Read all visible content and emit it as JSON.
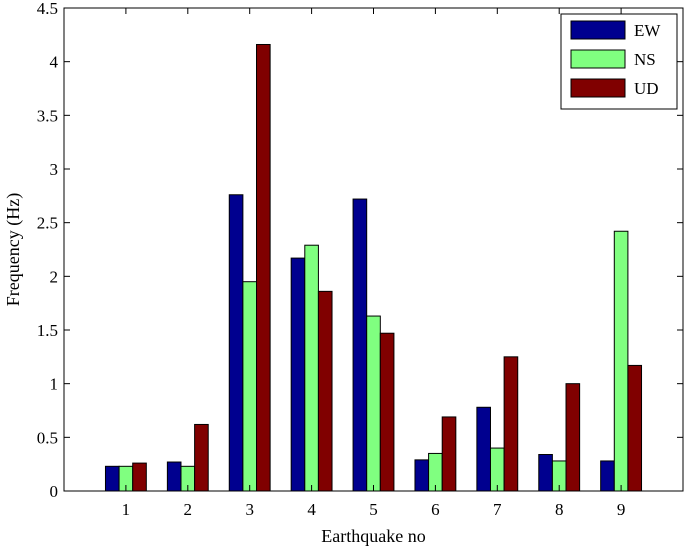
{
  "chart_data": {
    "type": "bar",
    "title": "",
    "xlabel": "Earthquake no",
    "ylabel": "Frequency (Hz)",
    "categories": [
      "1",
      "2",
      "3",
      "4",
      "5",
      "6",
      "7",
      "8",
      "9"
    ],
    "ylim": [
      0,
      4.5
    ],
    "yticks": [
      "0",
      "0.5",
      "1",
      "1.5",
      "2",
      "2.5",
      "3",
      "3.5",
      "4",
      "4.5"
    ],
    "grid": false,
    "legend_position": "top-right",
    "series": [
      {
        "name": "EW",
        "color": "#00008f",
        "values": [
          0.23,
          0.27,
          2.76,
          2.17,
          2.72,
          0.29,
          0.78,
          0.34,
          0.28
        ]
      },
      {
        "name": "NS",
        "color": "#80ff80",
        "values": [
          0.23,
          0.23,
          1.95,
          2.29,
          1.63,
          0.35,
          0.4,
          0.28,
          2.42
        ]
      },
      {
        "name": "UD",
        "color": "#800000",
        "values": [
          0.26,
          0.62,
          4.16,
          1.86,
          1.47,
          0.69,
          1.25,
          1.0,
          1.17
        ]
      }
    ]
  }
}
